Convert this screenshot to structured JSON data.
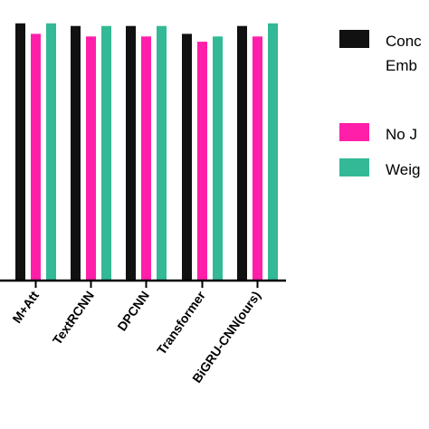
{
  "chart_data": {
    "type": "bar",
    "categories": [
      "M+Att",
      "TextRCNN",
      "DPCNN",
      "Transformer",
      "BiGRU-CNN(ours)"
    ],
    "series": [
      {
        "name": "Conc Emb",
        "color": "#111111",
        "values": [
          0.98,
          0.97,
          0.97,
          0.94,
          0.97
        ]
      },
      {
        "name": "No J",
        "color": "#ff1fa9",
        "values": [
          0.94,
          0.93,
          0.93,
          0.91,
          0.93
        ]
      },
      {
        "name": "Weig",
        "color": "#33b995",
        "values": [
          0.98,
          0.97,
          0.97,
          0.93,
          0.98
        ]
      }
    ],
    "ylim": [
      0,
      1.0
    ],
    "legend": "right",
    "grid": false
  },
  "legend_text": {
    "item0_line1": "Conc",
    "item0_line2": "Emb",
    "item1": "No J",
    "item2": "Weig"
  }
}
